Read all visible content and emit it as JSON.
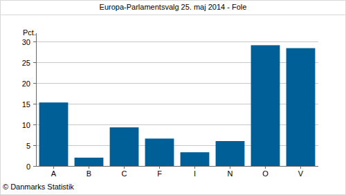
{
  "chart_data": {
    "type": "bar",
    "title": "Europa-Parlamentsvalg 25. maj 2014 - Fole",
    "y_label": "Pct.",
    "source": "© Danmarks Statistik",
    "categories": [
      "A",
      "B",
      "C",
      "F",
      "I",
      "N",
      "O",
      "V"
    ],
    "values": [
      15.3,
      2.0,
      9.3,
      6.6,
      3.3,
      6.0,
      29.1,
      28.4
    ],
    "color": "#005f96",
    "ylim": [
      0,
      32
    ],
    "yticks": [
      0,
      5,
      10,
      15,
      20,
      25,
      30
    ],
    "grid": true
  }
}
